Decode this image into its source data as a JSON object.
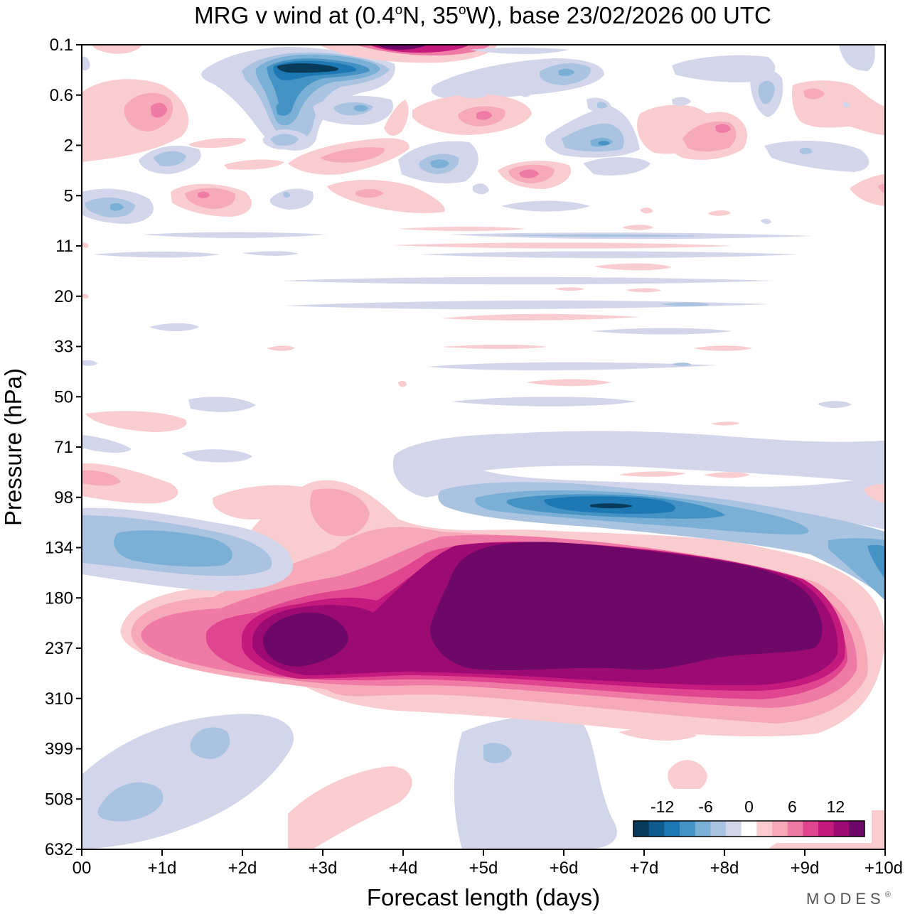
{
  "chart_data": {
    "type": "heatmap",
    "title": "MRG v wind at (0.4°N, 35°W),  base 23/02/2026  00 UTC",
    "title_parts": {
      "pre": "MRG v wind at (0.4",
      "deg1": "o",
      "mid": "N, 35",
      "deg2": "o",
      "post": "W),  base 23/02/2026  00 UTC"
    },
    "xlabel": "Forecast length (days)",
    "ylabel": "Pressure (hPa)",
    "x_ticks": [
      "00",
      "+1d",
      "+2d",
      "+3d",
      "+4d",
      "+5d",
      "+6d",
      "+7d",
      "+8d",
      "+9d",
      "+10d"
    ],
    "y_ticks": [
      "0.1",
      "0.6",
      "2",
      "5",
      "11",
      "20",
      "33",
      "50",
      "71",
      "98",
      "134",
      "180",
      "237",
      "310",
      "399",
      "508",
      "632"
    ],
    "xlim_days": [
      0,
      10
    ],
    "ylim_level_index": [
      0,
      16
    ],
    "colorbar": {
      "tick_labels": [
        "-12",
        "-6",
        "0",
        "6",
        "12"
      ],
      "tick_values": [
        -12,
        -6,
        0,
        6,
        12
      ],
      "levels": [
        -16,
        -14,
        -12,
        -10,
        -8,
        -6,
        -4,
        -2,
        2,
        4,
        6,
        8,
        10,
        12,
        14,
        16
      ],
      "colors": [
        "#083a5a",
        "#0d5a8c",
        "#1e78b4",
        "#4592c4",
        "#7aafd6",
        "#a9c3e0",
        "#d3d6ea",
        "#ffffff",
        "#f9cdd0",
        "#f6aab9",
        "#f07aa6",
        "#e0458f",
        "#c41a7e",
        "#9c0a74",
        "#6e0868"
      ]
    },
    "features": [
      {
        "name": "upper tropospheric southerly maximum",
        "x_range_days": [
          4.7,
          9.3
        ],
        "level_range": [
          "134",
          "310"
        ],
        "peak_v": 16
      },
      {
        "name": "secondary southerly maximum",
        "x_range_days": [
          2.3,
          3.4
        ],
        "level_range": [
          "180",
          "310"
        ],
        "peak_v": 16
      },
      {
        "name": "northerly maximum near 98 hPa",
        "x_range_days": [
          5.2,
          8.5
        ],
        "level_range": [
          "71",
          "134"
        ],
        "peak_v": -14
      },
      {
        "name": "northerly band near 134 hPa",
        "x_range_days": [
          0,
          2.6
        ],
        "level_range": [
          "98",
          "180"
        ],
        "peak_v": -8
      },
      {
        "name": "stratospheric northerly core",
        "x_range_days": [
          2.2,
          3.8
        ],
        "level_range": [
          "0.1",
          "2"
        ],
        "peak_v": -16
      }
    ],
    "brand": "MODES",
    "brand_mark": "®"
  }
}
